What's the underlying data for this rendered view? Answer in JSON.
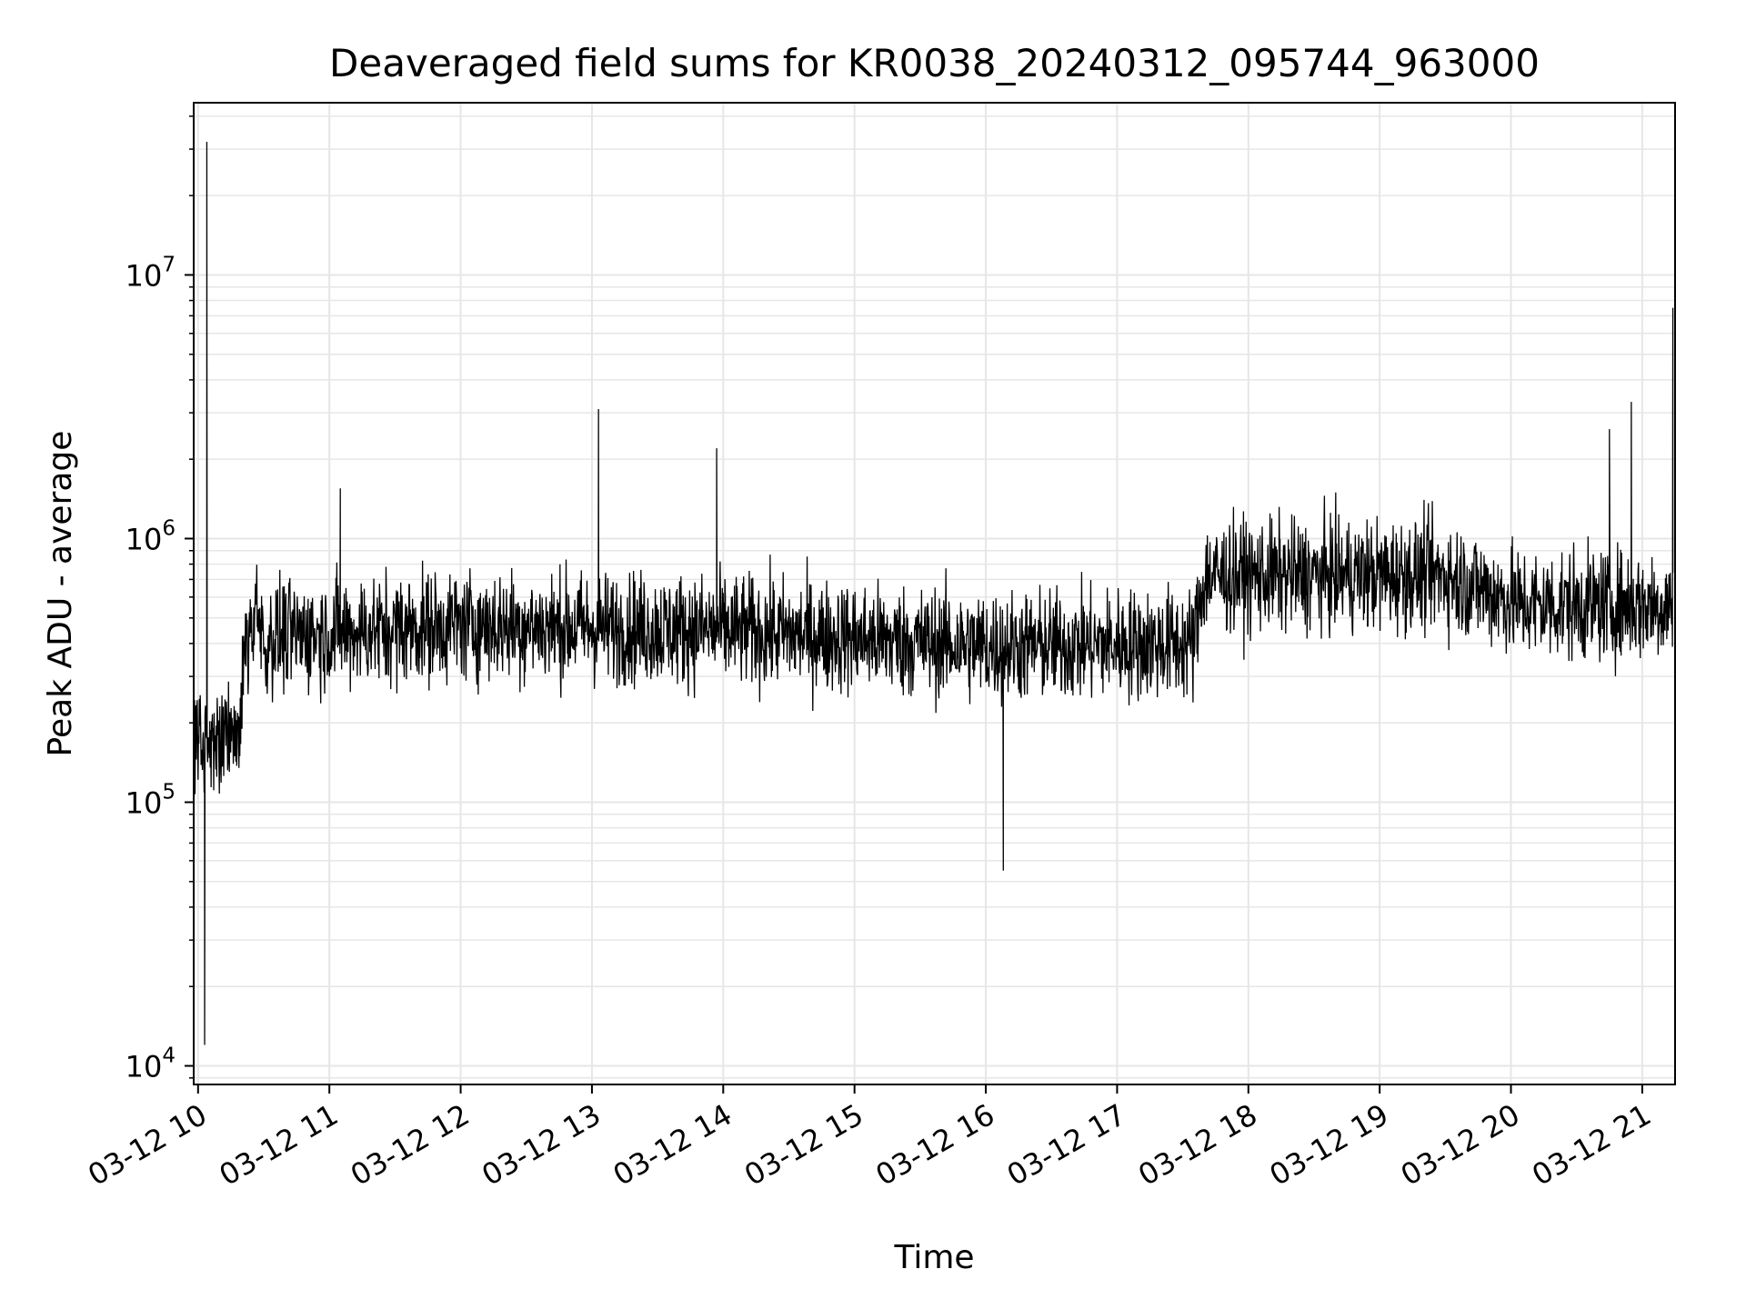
{
  "chart_data": {
    "type": "line",
    "title": "Deaveraged field sums for KR0038_20240312_095744_963000",
    "xlabel": "Time",
    "ylabel": "Peak ADU - average",
    "yscale": "log",
    "grid": true,
    "legend": "none",
    "line_color": "#000000",
    "grid_color": "#e6e6e6",
    "xlim": [
      "03-12 09:58",
      "03-12 21:15"
    ],
    "ylim": [
      8500,
      45000000
    ],
    "x_ticks": [
      {
        "value": "03-12 10:00",
        "label": "03-12 10"
      },
      {
        "value": "03-12 11:00",
        "label": "03-12 11"
      },
      {
        "value": "03-12 12:00",
        "label": "03-12 12"
      },
      {
        "value": "03-12 13:00",
        "label": "03-12 13"
      },
      {
        "value": "03-12 14:00",
        "label": "03-12 14"
      },
      {
        "value": "03-12 15:00",
        "label": "03-12 15"
      },
      {
        "value": "03-12 16:00",
        "label": "03-12 16"
      },
      {
        "value": "03-12 17:00",
        "label": "03-12 17"
      },
      {
        "value": "03-12 18:00",
        "label": "03-12 18"
      },
      {
        "value": "03-12 19:00",
        "label": "03-12 19"
      },
      {
        "value": "03-12 20:00",
        "label": "03-12 20"
      },
      {
        "value": "03-12 21:00",
        "label": "03-12 21"
      }
    ],
    "y_ticks": [
      {
        "value": 10000,
        "base": "10",
        "exp": "4"
      },
      {
        "value": 100000,
        "base": "10",
        "exp": "5"
      },
      {
        "value": 1000000,
        "base": "10",
        "exp": "6"
      },
      {
        "value": 10000000,
        "base": "10",
        "exp": "7"
      }
    ],
    "series": [
      {
        "x": [
          "03-12 09:58",
          "03-12 10:00",
          "03-12 10:03",
          "03-12 10:04",
          "03-12 10:05",
          "03-12 10:10",
          "03-12 10:15",
          "03-12 10:20",
          "03-12 10:30",
          "03-12 10:50",
          "03-12 11:00",
          "03-12 11:05",
          "03-12 11:30",
          "03-12 12:00",
          "03-12 12:30",
          "03-12 12:55",
          "03-12 13:03",
          "03-12 13:30",
          "03-12 13:57",
          "03-12 14:30",
          "03-12 15:00",
          "03-12 15:30",
          "03-12 16:00",
          "03-12 16:08",
          "03-12 16:30",
          "03-12 17:00",
          "03-12 17:20",
          "03-12 17:40",
          "03-12 18:00",
          "03-12 18:30",
          "03-12 19:00",
          "03-12 19:30",
          "03-12 20:00",
          "03-12 20:30",
          "03-12 20:45",
          "03-12 20:55",
          "03-12 21:00",
          "03-12 21:14"
        ],
        "y": [
          250000,
          350000,
          12000,
          32000000,
          150000,
          130000,
          200000,
          450000,
          420000,
          400000,
          480000,
          1550000,
          470000,
          500000,
          470000,
          500000,
          3100000,
          480000,
          2200000,
          450000,
          420000,
          400000,
          380000,
          55000,
          420000,
          380000,
          400000,
          780000,
          800000,
          760000,
          790000,
          790000,
          750000,
          550000,
          2600000,
          3300000,
          600000,
          7500000
        ]
      }
    ]
  }
}
